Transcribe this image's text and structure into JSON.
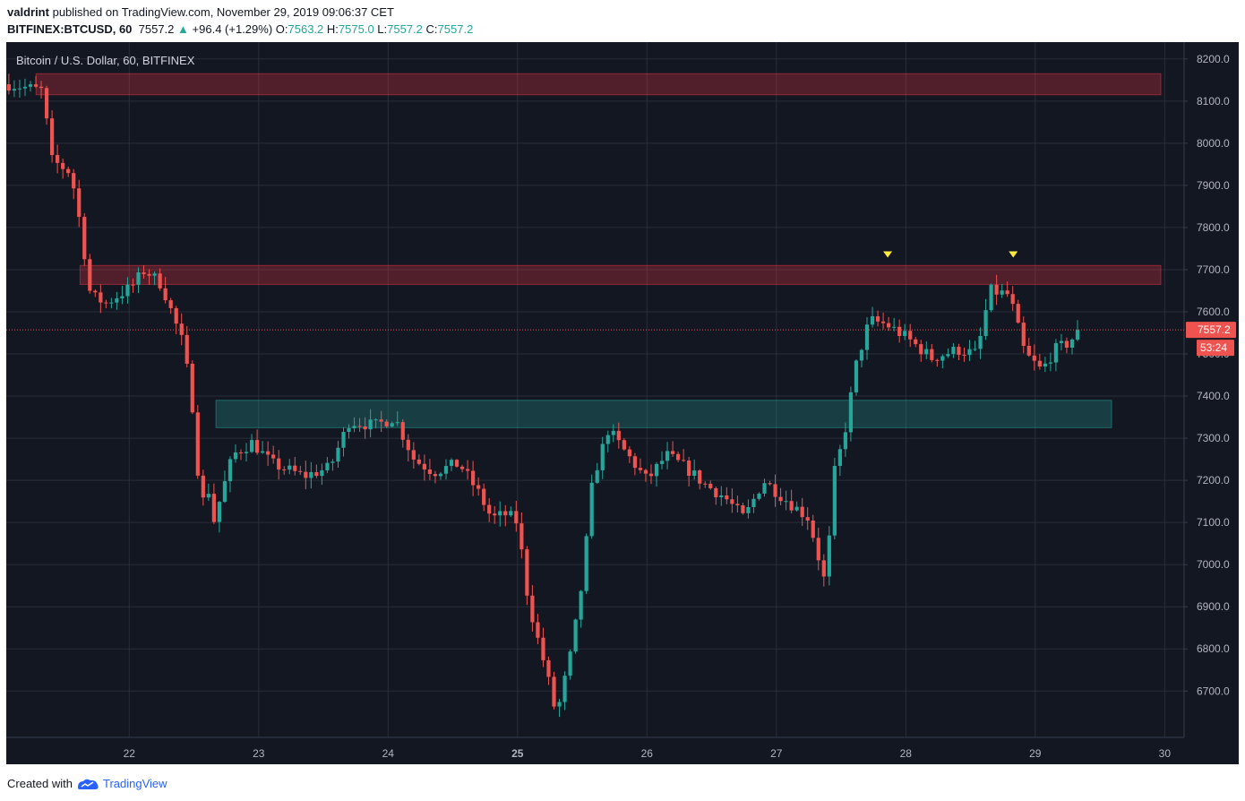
{
  "header": {
    "author": "valdrint",
    "published_text": "published on TradingView.com, November 29, 2019 09:06:37 CET",
    "symbol": "BITFINEX:BTCUSD, 60",
    "last": "7557.2",
    "change_arrow": "▲",
    "change": "+96.4 (+1.29%)",
    "o_label": "O:",
    "o_value": "7563.2",
    "h_label": "H:",
    "h_value": "7575.0",
    "l_label": "L:",
    "l_value": "7557.2",
    "c_label": "C:",
    "c_value": "7557.2"
  },
  "chart_data": {
    "type": "candlestick",
    "title": "Bitcoin / U.S. Dollar, 60, BITFINEX",
    "ylim": [
      6590,
      8240
    ],
    "y_ticks": [
      8200,
      8100,
      8000,
      7900,
      7800,
      7700,
      7600,
      7500,
      7400,
      7300,
      7200,
      7100,
      7000,
      6900,
      6800,
      6700
    ],
    "y_tick_labels": [
      "8200.0",
      "8100.0",
      "8000.0",
      "7900.0",
      "7800.0",
      "7700.0",
      "7600.0",
      "7500.0",
      "7400.0",
      "7300.0",
      "7200.0",
      "7100.0",
      "7000.0",
      "6900.0",
      "6800.0",
      "6700.0"
    ],
    "x_ticks": [
      22,
      23,
      24,
      25,
      26,
      27,
      28,
      29,
      30
    ],
    "x_tick_labels": [
      "22",
      "23",
      "24",
      "25",
      "26",
      "27",
      "28",
      "29",
      "30"
    ],
    "x_range": [
      21.05,
      30.15
    ],
    "last_price": 7557.2,
    "last_price_label": "7557.2",
    "countdown_label": "53:24",
    "zones": [
      {
        "from_day": 21.28,
        "to_day": 29.97,
        "low": 8115,
        "high": 8165,
        "color": "#f23645"
      },
      {
        "from_day": 21.62,
        "to_day": 29.97,
        "low": 7665,
        "high": 7710,
        "color": "#f23645"
      },
      {
        "from_day": 22.67,
        "to_day": 29.59,
        "low": 7325,
        "high": 7390,
        "color": "#26a69a"
      }
    ],
    "markers": [
      {
        "day": 27.86,
        "price": 7735,
        "color": "#ffeb3b"
      },
      {
        "day": 28.83,
        "price": 7735,
        "color": "#ffeb3b"
      }
    ],
    "waypoints": [
      [
        21.07,
        8140
      ],
      [
        21.33,
        8125
      ],
      [
        21.4,
        7960
      ],
      [
        21.55,
        7930
      ],
      [
        21.62,
        7810
      ],
      [
        21.7,
        7640
      ],
      [
        21.82,
        7620
      ],
      [
        22.02,
        7660
      ],
      [
        22.12,
        7700
      ],
      [
        22.25,
        7665
      ],
      [
        22.35,
        7580
      ],
      [
        22.42,
        7520
      ],
      [
        22.5,
        7350
      ],
      [
        22.55,
        7140
      ],
      [
        22.62,
        7180
      ],
      [
        22.65,
        7100
      ],
      [
        22.8,
        7260
      ],
      [
        22.95,
        7290
      ],
      [
        23.1,
        7240
      ],
      [
        23.35,
        7210
      ],
      [
        23.55,
        7230
      ],
      [
        23.7,
        7340
      ],
      [
        23.9,
        7330
      ],
      [
        24.05,
        7350
      ],
      [
        24.2,
        7250
      ],
      [
        24.35,
        7220
      ],
      [
        24.55,
        7240
      ],
      [
        24.7,
        7170
      ],
      [
        24.8,
        7110
      ],
      [
        24.92,
        7120
      ],
      [
        25.0,
        7100
      ],
      [
        25.08,
        6920
      ],
      [
        25.15,
        6830
      ],
      [
        25.22,
        6750
      ],
      [
        25.3,
        6640
      ],
      [
        25.42,
        6800
      ],
      [
        25.5,
        6960
      ],
      [
        25.58,
        7200
      ],
      [
        25.7,
        7320
      ],
      [
        25.85,
        7260
      ],
      [
        26.0,
        7200
      ],
      [
        26.15,
        7260
      ],
      [
        26.3,
        7230
      ],
      [
        26.45,
        7190
      ],
      [
        26.6,
        7160
      ],
      [
        26.75,
        7110
      ],
      [
        26.9,
        7200
      ],
      [
        27.05,
        7160
      ],
      [
        27.25,
        7110
      ],
      [
        27.38,
        6950
      ],
      [
        27.45,
        7220
      ],
      [
        27.52,
        7300
      ],
      [
        27.62,
        7480
      ],
      [
        27.72,
        7580
      ],
      [
        27.85,
        7570
      ],
      [
        28.0,
        7540
      ],
      [
        28.2,
        7490
      ],
      [
        28.4,
        7510
      ],
      [
        28.55,
        7500
      ],
      [
        28.65,
        7650
      ],
      [
        28.8,
        7640
      ],
      [
        28.92,
        7500
      ],
      [
        29.05,
        7460
      ],
      [
        29.15,
        7510
      ],
      [
        29.25,
        7525
      ],
      [
        29.36,
        7560
      ]
    ],
    "candle_step_days": 0.0417,
    "bull_color": "#26a69a",
    "bear_color": "#ef5350"
  },
  "footer": {
    "created_with": "Created with",
    "brand": "TradingView"
  }
}
